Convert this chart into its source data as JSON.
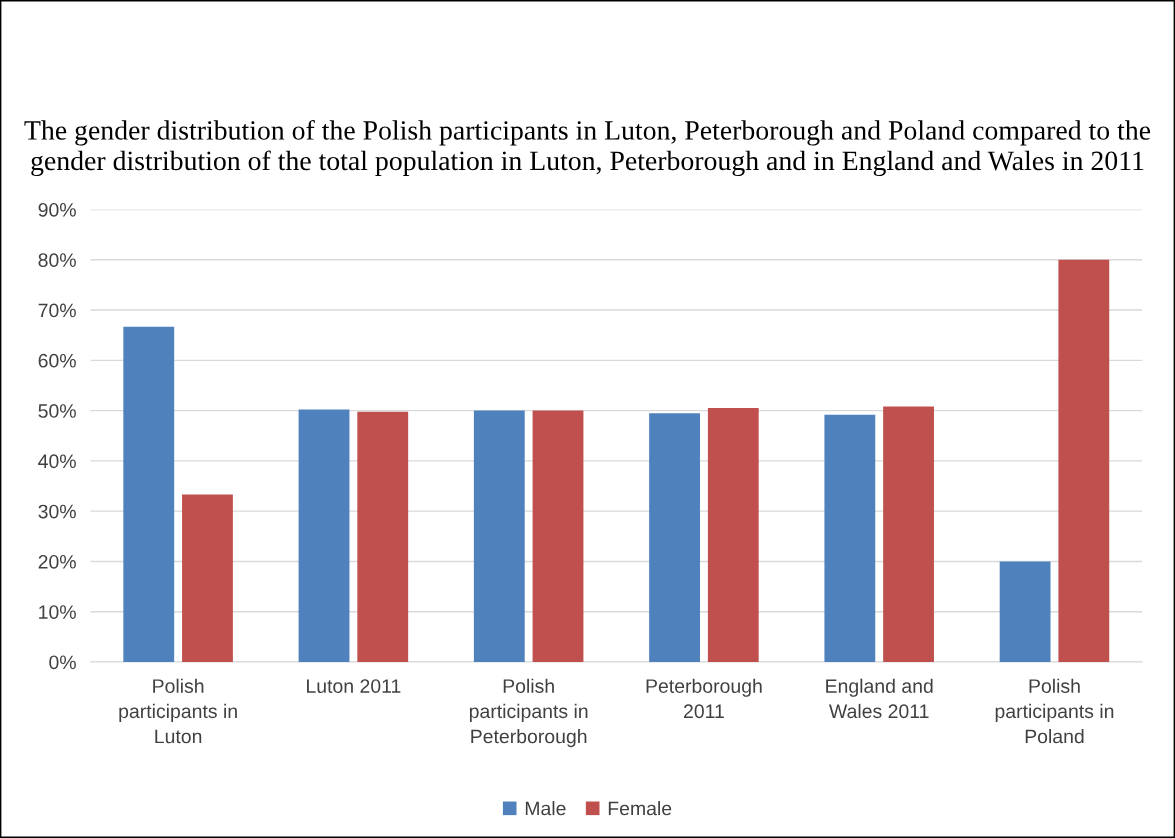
{
  "chart_data": {
    "type": "bar",
    "title": "The gender distribution of the Polish participants in Luton, Peterborough and Poland compared to the gender distribution of the total population in Luton, Peterborough and in England and Wales in 2011",
    "categories": [
      "Polish\nparticipants in\nLuton",
      "Luton 2011",
      "Polish\nparticipants in\nPeterborough",
      "Peterborough\n2011",
      "England and\nWales 2011",
      "Polish\nparticipants in\nPoland"
    ],
    "series": [
      {
        "name": "Male",
        "color": "#4f81bd",
        "values": [
          66.7,
          50.2,
          50.0,
          49.5,
          49.2,
          20.0
        ]
      },
      {
        "name": "Female",
        "color": "#c0504d",
        "values": [
          33.3,
          49.8,
          50.0,
          50.5,
          50.8,
          80.0
        ]
      }
    ],
    "ylim": [
      0,
      90
    ],
    "yticks": [
      {
        "value": 0,
        "label": "0%"
      },
      {
        "value": 10,
        "label": "10%"
      },
      {
        "value": 20,
        "label": "20%"
      },
      {
        "value": 30,
        "label": "30%"
      },
      {
        "value": 40,
        "label": "40%"
      },
      {
        "value": 50,
        "label": "50%"
      },
      {
        "value": 60,
        "label": "60%"
      },
      {
        "value": 70,
        "label": "70%"
      },
      {
        "value": 80,
        "label": "80%"
      },
      {
        "value": 90,
        "label": "90%"
      }
    ],
    "grid": "y",
    "legend": "bottom"
  }
}
